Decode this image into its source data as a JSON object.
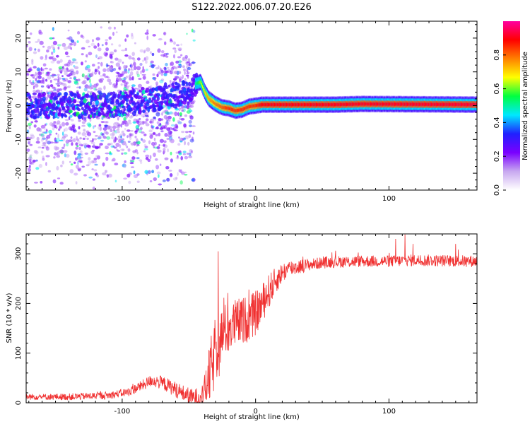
{
  "title": "S122.2022.006.07.20.E26",
  "chart_data": [
    {
      "type": "heatmap",
      "name": "spectrogram",
      "xlabel": "Height of straight line (km)",
      "ylabel": "Frequency (Hz)",
      "xlim": [
        -172,
        166
      ],
      "ylim": [
        -25,
        25
      ],
      "xticks": [
        -100,
        0,
        100
      ],
      "yticks": [
        -20,
        -10,
        0,
        10,
        20
      ],
      "colorbar": {
        "label": "Normalized spectral amplitude",
        "range": [
          0,
          1
        ],
        "ticks": [
          "0.0",
          "0.2",
          "0.4",
          "0.6",
          "0.8"
        ],
        "tick_values": [
          0,
          0.2,
          0.4,
          0.6,
          0.8
        ],
        "colormap": [
          "#ffffff",
          "#c8a8f0",
          "#7a00ff",
          "#2020ff",
          "#00e8ff",
          "#00ff40",
          "#ffff00",
          "#ff8000",
          "#ff0000",
          "#ff00a0"
        ]
      },
      "ridge": {
        "x": [
          -172,
          -150,
          -125,
          -100,
          -80,
          -62,
          -50,
          -45,
          -41,
          -38,
          -35,
          -30,
          -25,
          -20,
          -15,
          -10,
          -5,
          0,
          5,
          60,
          80,
          166
        ],
        "freq_hz": [
          0,
          0,
          0,
          0.5,
          2,
          3,
          4,
          6.5,
          7,
          4,
          2,
          0.5,
          -0.5,
          -0.8,
          -1.5,
          -1.2,
          -0.3,
          0,
          0.3,
          0.3,
          0.5,
          0.3
        ]
      },
      "ridge_amplitude": {
        "x": [
          -172,
          -100,
          -60,
          -50,
          -45,
          -40,
          -35,
          -20,
          0,
          5,
          166
        ],
        "amp": [
          0.3,
          0.3,
          0.35,
          0.4,
          0.5,
          0.65,
          0.75,
          0.85,
          0.85,
          0.9,
          0.92
        ]
      },
      "noise_region": {
        "x_from": -172,
        "x_to": -50,
        "freq_spread_hz": 25
      }
    },
    {
      "type": "line",
      "name": "snr",
      "xlabel": "Height of straight line (km)",
      "ylabel": "SNR (10 * v/v)",
      "xlim": [
        -172,
        166
      ],
      "ylim": [
        0,
        340
      ],
      "xticks": [
        -100,
        0,
        100
      ],
      "yticks": [
        0,
        100,
        200,
        300
      ],
      "color": "#f03030",
      "trend": {
        "x": [
          -172,
          -140,
          -110,
          -95,
          -85,
          -78,
          -70,
          -62,
          -55,
          -48,
          -42,
          -38,
          -33,
          -28,
          -24,
          -20,
          -15,
          -10,
          -5,
          0,
          5,
          10,
          15,
          20,
          25,
          30,
          40,
          50,
          60,
          70,
          80,
          100,
          120,
          140,
          166
        ],
        "y": [
          12,
          12,
          15,
          22,
          35,
          45,
          40,
          30,
          20,
          10,
          12,
          25,
          70,
          120,
          145,
          150,
          160,
          165,
          170,
          180,
          200,
          225,
          245,
          262,
          270,
          273,
          278,
          282,
          284,
          284,
          285,
          285,
          287,
          286,
          285
        ]
      },
      "noise": {
        "x": [
          -172,
          -100,
          -50,
          -40,
          -33,
          -25,
          -15,
          0,
          10,
          20,
          40,
          166
        ],
        "amp": [
          6,
          8,
          18,
          20,
          70,
          55,
          50,
          45,
          35,
          20,
          12,
          12
        ]
      },
      "peaks": [
        {
          "x": -28,
          "y": 305
        },
        {
          "x": 112,
          "y": 340
        },
        {
          "x": 105,
          "y": 330
        },
        {
          "x": 118,
          "y": 320
        },
        {
          "x": 150,
          "y": 320
        }
      ]
    }
  ]
}
